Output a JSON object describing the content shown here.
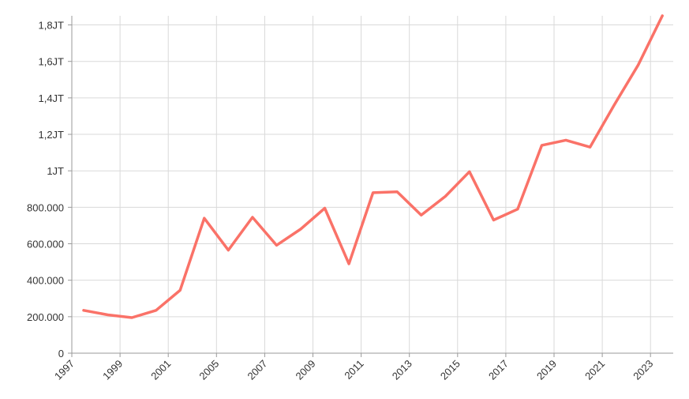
{
  "chart_data": {
    "type": "line",
    "title": "",
    "xlabel": "",
    "ylabel": "",
    "x_tick_labels": [
      "1997",
      "1999",
      "2001",
      "2005",
      "2007",
      "2009",
      "2011",
      "2013",
      "2015",
      "2017",
      "2019",
      "2021",
      "2023"
    ],
    "y_tick_labels": [
      "0",
      "200.000",
      "400.000",
      "600.000",
      "800.000",
      "1JT",
      "1,2JT",
      "1,4JT",
      "1,6JT",
      "1,8JT"
    ],
    "y_tick_values": [
      0,
      200000,
      400000,
      600000,
      800000,
      1000000,
      1200000,
      1400000,
      1600000,
      1800000
    ],
    "ylim": [
      0,
      1850000
    ],
    "grid": true,
    "legend": "none",
    "series": [
      {
        "color": "#fa7268",
        "values": [
          235000,
          210000,
          195000,
          235000,
          345000,
          740000,
          565000,
          745000,
          592000,
          680000,
          795000,
          490000,
          880000,
          885000,
          757000,
          860000,
          995000,
          730000,
          790000,
          1140000,
          1168000,
          1130000,
          1360000,
          1580000,
          1850000
        ]
      }
    ]
  }
}
